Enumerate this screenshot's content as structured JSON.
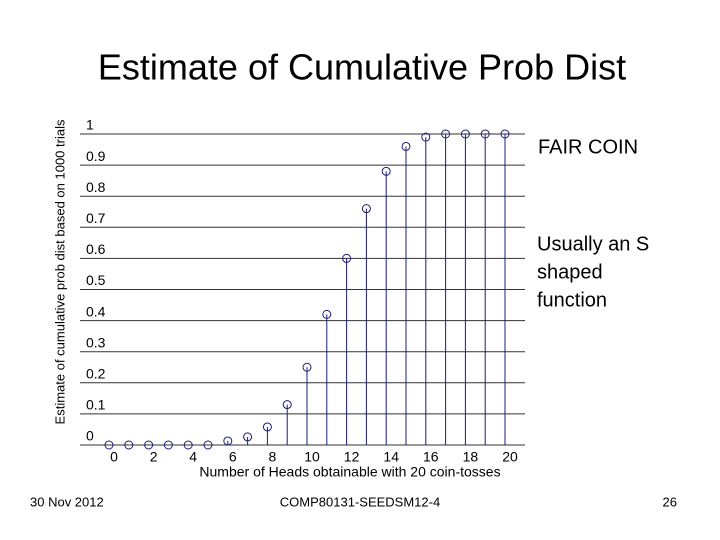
{
  "chart_data": {
    "type": "stem",
    "title": "Estimate of Cumulative Prob Dist",
    "x_label": "Number of Heads obtainable with 20 coin-tosses",
    "y_label": "Estimate of cumulative prob dist based on 1000 trials",
    "annotations": [
      "FAIR COIN",
      [
        "Usually an S",
        "shaped",
        "function"
      ]
    ],
    "x": [
      0,
      1,
      2,
      3,
      4,
      5,
      6,
      7,
      8,
      9,
      10,
      11,
      12,
      13,
      14,
      15,
      16,
      17,
      18,
      19,
      20
    ],
    "values": [
      0,
      0,
      0,
      0,
      0,
      0,
      0.013,
      0.026,
      0.058,
      0.13,
      0.25,
      0.42,
      0.6,
      0.76,
      0.88,
      0.96,
      0.99,
      1,
      1,
      1,
      1
    ],
    "color": "#1c1c78",
    "xlim": [
      0,
      20
    ],
    "ylim": [
      0,
      1
    ],
    "xticks": [
      0,
      2,
      4,
      6,
      8,
      10,
      12,
      14,
      16,
      18,
      20
    ],
    "yticks": [
      0,
      0.1,
      0.2,
      0.3,
      0.4,
      0.5,
      0.6,
      0.7,
      0.8,
      0.9,
      1
    ],
    "grid": true
  },
  "footer": {
    "date": "30 Nov 2012",
    "course": "COMP80131-SEEDSM12-4",
    "page": "26"
  }
}
